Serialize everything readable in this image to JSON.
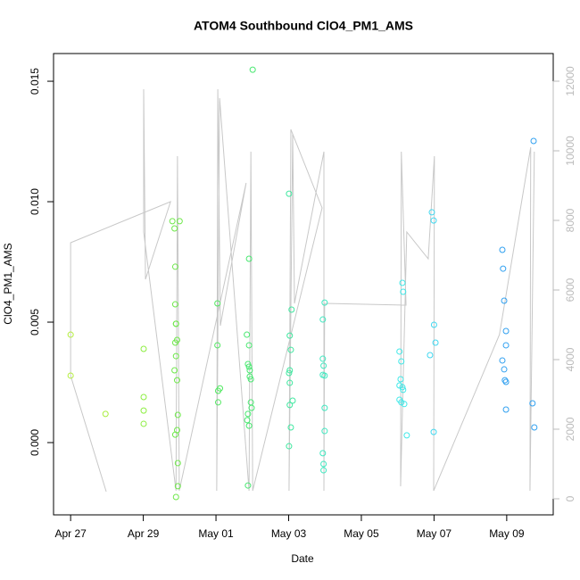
{
  "chart_data": {
    "type": "scatter",
    "title": "ATOM4 Southbound ClO4_PM1_AMS",
    "x_label": "Date",
    "y_label": "ClO4_PM1_AMS",
    "xlim": [
      -0.47,
      13.28
    ],
    "xticks": [
      {
        "value": 0,
        "label": "Apr 27"
      },
      {
        "value": 2,
        "label": "Apr 29"
      },
      {
        "value": 4,
        "label": "May 01"
      },
      {
        "value": 6,
        "label": "May 03"
      },
      {
        "value": 8,
        "label": "May 05"
      },
      {
        "value": 10,
        "label": "May 07"
      },
      {
        "value": 12,
        "label": "May 09"
      }
    ],
    "ylim": [
      -0.003,
      0.01615
    ],
    "yticks": [
      {
        "value": 0,
        "label": "0.000"
      },
      {
        "value": 0.005,
        "label": "0.005"
      },
      {
        "value": 0.01,
        "label": "0.010"
      },
      {
        "value": 0.015,
        "label": "0.015"
      }
    ],
    "y2lim": [
      -462,
      12795
    ],
    "y2ticks": [
      0,
      2000,
      4000,
      6000,
      8000,
      10000,
      12000
    ],
    "points": {
      "x": [
        0,
        0,
        0.96,
        2.01,
        2.01,
        2.01,
        2.01,
        2.86,
        2.88,
        2.88,
        2.9,
        2.9,
        2.93,
        2.88,
        2.9,
        2.86,
        2.93,
        2.95,
        2.93,
        2.88,
        2.95,
        2.95,
        2.9,
        2.8,
        3.0,
        4.04,
        4.04,
        4.06,
        4.11,
        4.06,
        5.01,
        4.91,
        4.85,
        4.91,
        4.88,
        4.91,
        4.93,
        4.93,
        4.96,
        4.96,
        4.98,
        4.88,
        4.86,
        4.91,
        4.88,
        6.01,
        6.08,
        6.03,
        6.06,
        6.03,
        6.01,
        6.03,
        6.11,
        6.03,
        6.06,
        6.01,
        6.99,
        6.94,
        6.94,
        6.96,
        6.94,
        6.99,
        6.99,
        6.99,
        6.94,
        6.96,
        6.96,
        9.13,
        9.15,
        9.05,
        9.1,
        9.08,
        9.05,
        9.13,
        9.15,
        9.05,
        9.1,
        9.18,
        9.25,
        9.94,
        9.99,
        10.0,
        10.04,
        9.89,
        9.99,
        12.74,
        11.88,
        11.9,
        11.93,
        11.98,
        11.98,
        11.88,
        11.93,
        11.95,
        11.98,
        11.98,
        12.71,
        12.76
      ],
      "values": [
        0.00448,
        0.00278,
        0.00119,
        0.00389,
        0.00189,
        0.00133,
        0.00078,
        0.00889,
        0.0073,
        0.00574,
        0.00493,
        0.00493,
        0.00426,
        0.00415,
        0.00359,
        0.003,
        0.00259,
        0.00115,
        0.00052,
        0.00033,
        -0.00085,
        -0.00181,
        -0.00226,
        0.00919,
        0.00919,
        0.00578,
        0.00404,
        0.00215,
        0.00225,
        0.00167,
        0.01548,
        0.00763,
        0.00448,
        0.00404,
        0.00326,
        0.00315,
        0.003,
        0.00274,
        0.00263,
        0.00167,
        0.00144,
        0.00119,
        0.00093,
        0.0007,
        -0.00178,
        0.01033,
        0.00552,
        0.00444,
        0.00385,
        0.003,
        0.00289,
        0.00248,
        0.00174,
        0.00156,
        0.00063,
        -0.00015,
        0.00581,
        0.00511,
        0.00348,
        0.00319,
        0.00281,
        0.00278,
        0.00144,
        0.00048,
        -0.00044,
        -0.00089,
        -0.00115,
        0.00663,
        0.00626,
        0.00378,
        0.00337,
        0.00263,
        0.00237,
        0.0023,
        0.00219,
        0.00178,
        0.00167,
        0.0016,
        0.0003,
        0.00956,
        0.00922,
        0.00489,
        0.00415,
        0.00363,
        0.00044,
        0.01252,
        0.008,
        0.00722,
        0.00589,
        0.00463,
        0.00404,
        0.00341,
        0.00304,
        0.00259,
        0.00252,
        0.00137,
        0.00163,
        0.00063
      ],
      "colors": [
        "#b4ee3c",
        "#b4ee3c",
        "#a8ee3c",
        "#8cee40",
        "#8cee40",
        "#8cee40",
        "#8cee40",
        "#6ee84a",
        "#6ee84a",
        "#6ee84a",
        "#6ee84a",
        "#6ee84a",
        "#6ee84a",
        "#6ee84a",
        "#6ee84a",
        "#6ee84a",
        "#6ee84a",
        "#6ee84a",
        "#6ee84a",
        "#6ee84a",
        "#6ee84a",
        "#6ee84a",
        "#6ee84a",
        "#6ee84a",
        "#6ee84a",
        "#50e860",
        "#50e860",
        "#50e860",
        "#50e860",
        "#50e860",
        "#48e870",
        "#48e870",
        "#48e870",
        "#48e870",
        "#48e870",
        "#48e870",
        "#48e870",
        "#48e870",
        "#48e870",
        "#48e870",
        "#48e870",
        "#48e870",
        "#48e870",
        "#48e870",
        "#48e870",
        "#40e8a0",
        "#40e8a0",
        "#40e8a0",
        "#40e8a0",
        "#40e8a0",
        "#40e8a0",
        "#40e8a0",
        "#40e8a0",
        "#40e8a0",
        "#40e8a0",
        "#40e8a0",
        "#40e8c0",
        "#40e8c0",
        "#40e8c0",
        "#40e8c0",
        "#40e8c0",
        "#40e8c0",
        "#40e8c0",
        "#40e8c0",
        "#40e8c0",
        "#40e8c0",
        "#40e8c0",
        "#40e8e8",
        "#40e8e8",
        "#40e8e8",
        "#40e8e8",
        "#40e8e8",
        "#40e8e8",
        "#40e8e8",
        "#40e8e8",
        "#40e8e8",
        "#40e8e8",
        "#40e8e8",
        "#40e8e8",
        "#40d8f0",
        "#40d8f0",
        "#40d8f0",
        "#40d8f0",
        "#40d8f0",
        "#40d8f0",
        "#30a0f0",
        "#30a0f0",
        "#30a0f0",
        "#30a0f0",
        "#30a0f0",
        "#30a0f0",
        "#30a0f0",
        "#30a0f0",
        "#30a0f0",
        "#30a0f0",
        "#30a0f0",
        "#30a0f0",
        "#30a0f0"
      ]
    },
    "line": {
      "axis": "y2",
      "color": "#c8c8c8",
      "x": [
        0.98,
        0,
        0,
        2.75,
        2.06,
        2.01,
        2.01,
        2.9,
        2.94,
        2.99,
        4.83,
        4.12,
        4.05,
        4.02,
        4.1,
        4.91,
        4.96,
        5.01,
        6.92,
        6.06,
        6.01,
        6.11,
        6.16,
        6.97,
        6.97,
        6.99,
        9.23,
        9.1,
        9.08,
        9.25,
        9.84,
        10.01,
        9.99,
        11.8,
        12.66,
        12.64,
        12.76
      ],
      "values": [
        205,
        3538,
        7359,
        8538,
        6308,
        11769,
        7667,
        231,
        9846,
        231,
        9077,
        4974,
        11769,
        231,
        11513,
        231,
        9974,
        231,
        8359,
        10615,
        231,
        10487,
        5615,
        9974,
        231,
        5615,
        5564,
        9974,
        359,
        7667,
        6897,
        9846,
        231,
        4718,
        10103,
        231,
        9974
      ]
    }
  }
}
